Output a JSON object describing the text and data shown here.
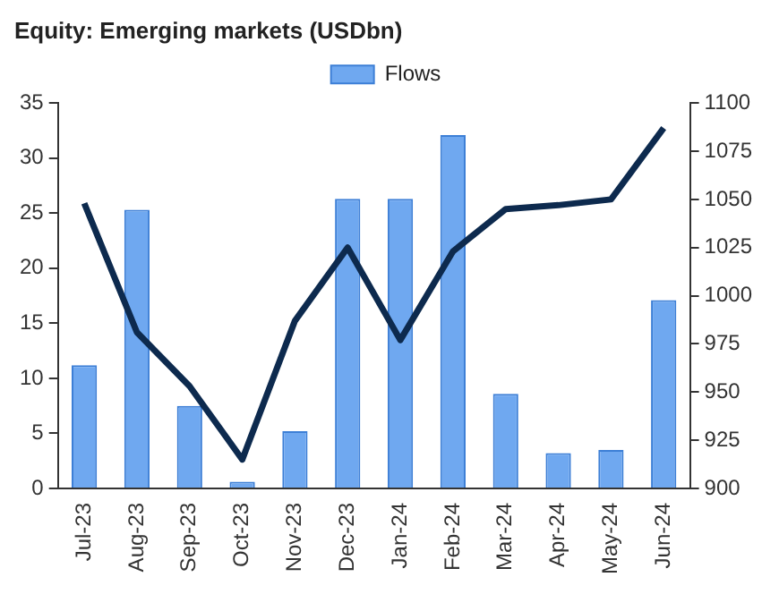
{
  "chart_data": {
    "type": "bar",
    "title": "Equity: Emerging markets (USDbn)",
    "categories": [
      "Jul-23",
      "Aug-23",
      "Sep-23",
      "Oct-23",
      "Nov-23",
      "Dec-23",
      "Jan-24",
      "Feb-24",
      "Mar-24",
      "Apr-24",
      "May-24",
      "Jun-24"
    ],
    "series": [
      {
        "name": "Flows",
        "color": "#6fa8f0",
        "values": [
          11.2,
          25.3,
          7.5,
          0.6,
          5.2,
          26.3,
          26.3,
          32.1,
          8.6,
          3.2,
          3.5,
          17.1
        ]
      },
      {
        "type": "line",
        "axis": "y2",
        "color": "#0d2a4e",
        "values": [
          1048,
          981,
          953,
          915,
          987,
          1025,
          977,
          1023,
          1045,
          1047,
          1050,
          1087
        ]
      }
    ],
    "ylim": [
      0,
      35
    ],
    "yticks": [
      0,
      5,
      10,
      15,
      20,
      25,
      30,
      35
    ],
    "y2lim": [
      900,
      1100
    ],
    "y2ticks": [
      900,
      925,
      950,
      975,
      1000,
      1025,
      1050,
      1075,
      1100
    ],
    "legend": "top",
    "grid": false,
    "marker": "none",
    "line_style": "solid"
  }
}
